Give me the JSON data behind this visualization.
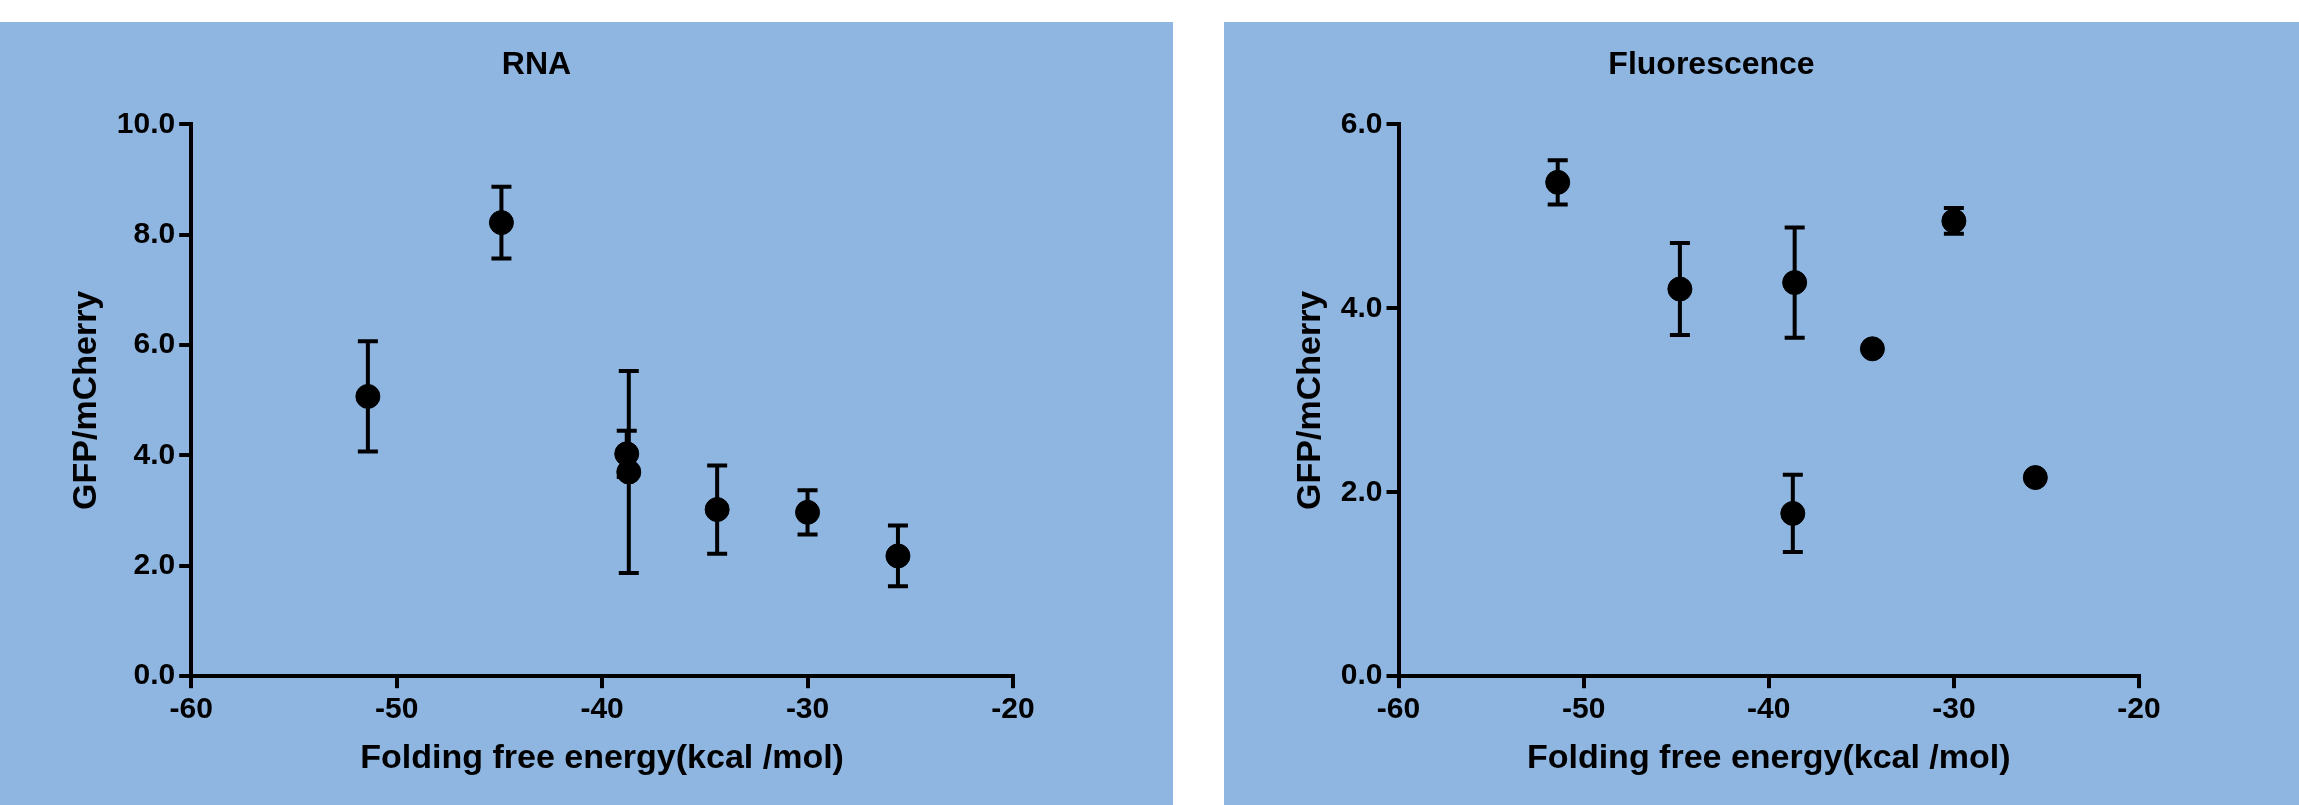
{
  "chart_data": [
    {
      "type": "scatter",
      "title": "RNA",
      "xlabel": "Folding free energy(kcal /mol)",
      "ylabel": "GFP/mCherry",
      "xlim": [
        -60,
        -20
      ],
      "xticks": [
        -60,
        -50,
        -40,
        -30,
        -20
      ],
      "ylim": [
        0,
        10
      ],
      "yticks": [
        {
          "value": 0,
          "label": "0.0"
        },
        {
          "value": 2,
          "label": "2.0"
        },
        {
          "value": 4,
          "label": "4.0"
        },
        {
          "value": 6,
          "label": "6.0"
        },
        {
          "value": 8,
          "label": "8.0"
        },
        {
          "value": 10,
          "label": "10.0"
        }
      ],
      "grid": false,
      "legend": false,
      "marker": "circle",
      "series": [
        {
          "color": "#000000",
          "x": [
            -51.4,
            -44.9,
            -38.8,
            -38.7,
            -34.4,
            -30.0,
            -25.6
          ],
          "values": [
            5.07,
            8.22,
            4.03,
            3.7,
            3.02,
            2.97,
            2.18
          ],
          "errors": [
            1.0,
            0.65,
            0.42,
            1.83,
            0.8,
            0.4,
            0.55
          ]
        }
      ]
    },
    {
      "type": "scatter",
      "title": "Fluorescence",
      "xlabel": "Folding free energy(kcal /mol)",
      "ylabel": "GFP/mCherry",
      "xlim": [
        -60,
        -20
      ],
      "xticks": [
        -60,
        -50,
        -40,
        -30,
        -20
      ],
      "ylim": [
        0,
        6
      ],
      "yticks": [
        {
          "value": 0,
          "label": "0.0"
        },
        {
          "value": 2,
          "label": "2.0"
        },
        {
          "value": 4,
          "label": "4.0"
        },
        {
          "value": 6,
          "label": "6.0"
        }
      ],
      "grid": false,
      "legend": false,
      "marker": "circle",
      "series": [
        {
          "color": "#000000",
          "x": [
            -51.4,
            -44.8,
            -38.6,
            -38.7,
            -34.4,
            -30.0,
            -25.6
          ],
          "values": [
            5.37,
            4.21,
            4.28,
            1.77,
            3.56,
            4.95,
            2.16
          ],
          "errors": [
            0.24,
            0.5,
            0.6,
            0.42,
            null,
            0.14,
            null
          ]
        }
      ]
    }
  ]
}
